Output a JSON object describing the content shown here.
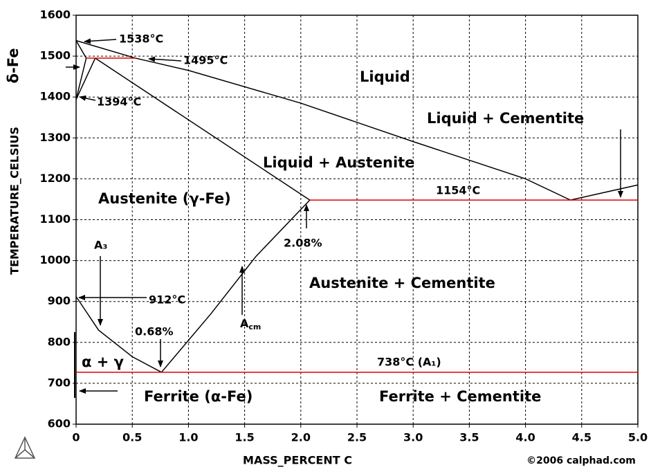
{
  "chart_data": {
    "type": "line",
    "xlabel": "MASS_PERCENT C",
    "ylabel": "TEMPERATURE_CELSIUS",
    "xlim": [
      0,
      5
    ],
    "xticks": [
      0,
      0.5,
      {
        "value": 1,
        "label": "1.0"
      },
      1.5,
      {
        "value": 2,
        "label": "2.0"
      },
      2.5,
      {
        "value": 3,
        "label": "3.0"
      },
      3.5,
      {
        "value": 4,
        "label": "4.0"
      },
      4.5,
      {
        "value": 5,
        "label": "5.0"
      }
    ],
    "ylim": [
      600,
      1600
    ],
    "yticks": [
      600,
      700,
      800,
      900,
      1000,
      1100,
      1200,
      1300,
      1400,
      1500,
      1600
    ],
    "grid": true,
    "series": [
      {
        "color": "#000000",
        "x": [
          0,
          0.53,
          1.0,
          2.0,
          3.0,
          4.0,
          4.4,
          5.0
        ],
        "values": [
          1538,
          1495,
          1465,
          1385,
          1291,
          1200,
          1148,
          1185
        ]
      },
      {
        "color": "#000000",
        "x": [
          0,
          0.09
        ],
        "values": [
          1538,
          1495
        ]
      },
      {
        "color": "#000000",
        "x": [
          0,
          0.09
        ],
        "values": [
          1394,
          1495
        ]
      },
      {
        "color": "#000000",
        "x": [
          0,
          0.17
        ],
        "values": [
          1394,
          1495
        ]
      },
      {
        "color": "#000000",
        "x": [
          0.17,
          2.08
        ],
        "values": [
          1495,
          1148
        ]
      },
      {
        "color": "#000000",
        "x": [
          0.76,
          1.2,
          1.6,
          2.08
        ],
        "values": [
          727,
          870,
          1010,
          1148
        ]
      },
      {
        "color": "#000000",
        "x": [
          0,
          0.2,
          0.5,
          0.76
        ],
        "values": [
          912,
          830,
          765,
          727
        ]
      },
      {
        "color": "#e00000",
        "x": [
          0.09,
          0.53
        ],
        "values": [
          1495,
          1495
        ]
      },
      {
        "color": "#e00000",
        "x": [
          2.08,
          5.0
        ],
        "values": [
          1148,
          1148
        ]
      },
      {
        "color": "#e00000",
        "x": [
          0,
          5.0
        ],
        "values": [
          727,
          727
        ]
      }
    ],
    "annotations": [
      "1538°C",
      "1495°C",
      "1394°C",
      "Liquid",
      "Liquid + Cementite",
      "Liquid + Austenite",
      "Austenite (γ-Fe)",
      "1154°C",
      "2.08%",
      "A₃",
      "Austenite + Cementite",
      "912°C",
      "0.68%",
      "α + γ",
      "738°C (A₁)",
      "Ferrite (α-Fe)",
      "Ferrite + Cementite"
    ],
    "acm": {
      "text": "A",
      "sub": "cm"
    },
    "delta_label": "δ-Fe",
    "copyright": "©2006 calphad.com"
  }
}
